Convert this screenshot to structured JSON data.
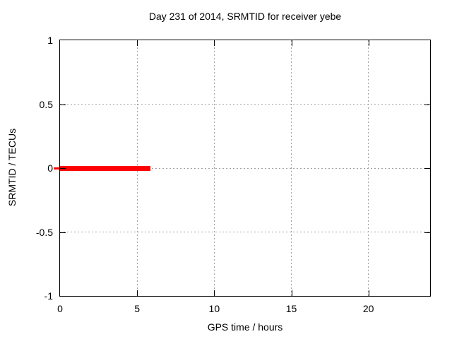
{
  "chart_data": {
    "type": "line",
    "title": "Day 231 of 2014, SRMTID for receiver yebe",
    "xlabel": "GPS time / hours",
    "ylabel": "SRMTID / TECUs",
    "xlim": [
      0,
      24
    ],
    "ylim": [
      -1,
      1
    ],
    "xticks": [
      0,
      5,
      10,
      15,
      20
    ],
    "xtick_labels": [
      "0",
      "5",
      "10",
      "15",
      "20"
    ],
    "yticks": [
      -1,
      -0.5,
      0,
      0.5,
      1
    ],
    "ytick_labels": [
      "-1",
      "-0.5",
      "0",
      "0.5",
      "1"
    ],
    "grid": true,
    "grid_color": "#a0a0a0",
    "border_color": "#000000",
    "background_color": "#ffffff",
    "legend": "none",
    "series": [
      {
        "name": "SRMTID",
        "color": "#ff0000",
        "style": "thick horizontal line segment",
        "points": [
          {
            "x": 0,
            "y": 0
          },
          {
            "x": 5.85,
            "y": 0
          }
        ]
      }
    ],
    "axis_overhang_marker": {
      "x": 0,
      "y": 0,
      "color": "#ff0000",
      "note": "small red tick protruding left of y-axis at y=0"
    }
  }
}
